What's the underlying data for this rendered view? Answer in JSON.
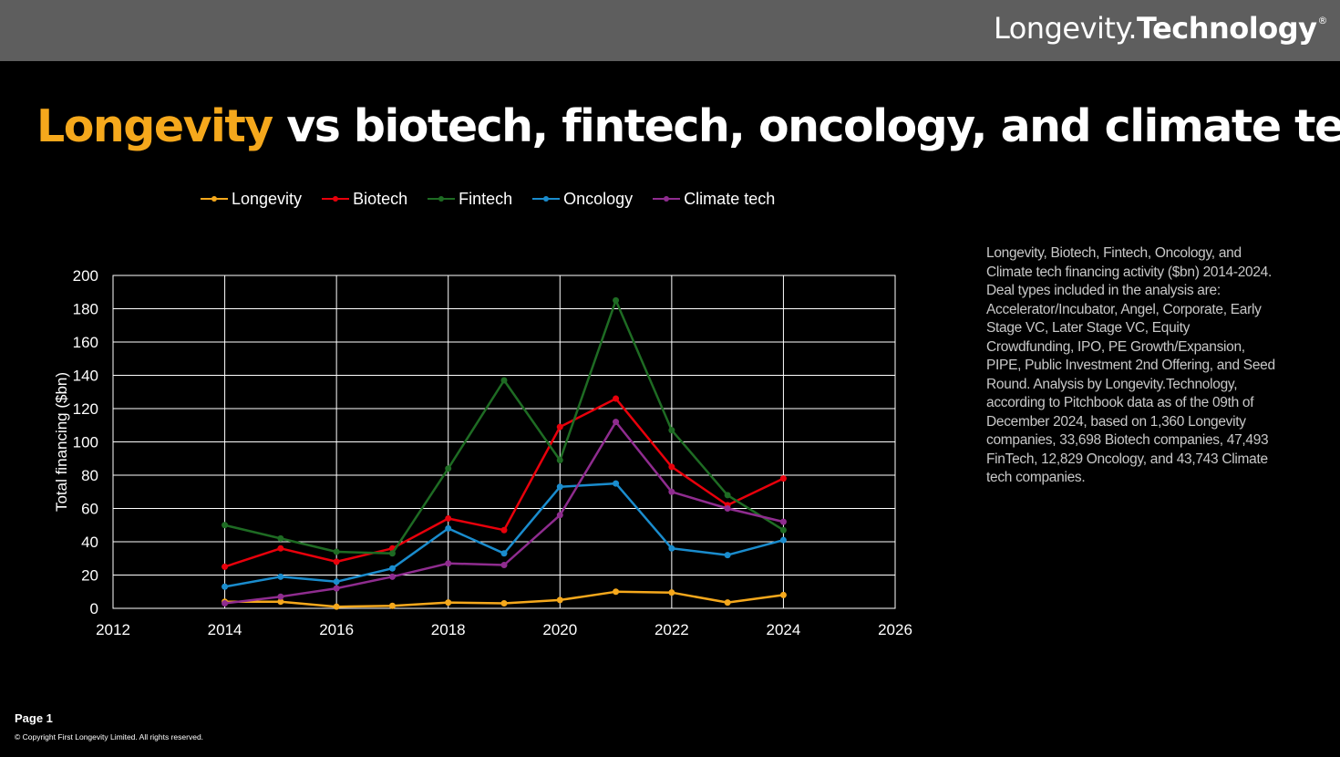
{
  "header": {
    "brand_light": "Longevity.",
    "brand_bold": "Technology",
    "brand_mark": "®"
  },
  "slide": {
    "title_highlight": "Longevity",
    "title_rest": " vs biotech, fintech, oncology, and climate tech",
    "description": "Longevity, Biotech, Fintech, Oncology, and Climate tech financing activity ($bn) 2014-2024. Deal types included in the analysis are: Accelerator/Incubator, Angel, Corporate, Early Stage VC, Later Stage VC, Equity Crowdfunding, IPO, PE Growth/Expansion, PIPE, Public Investment 2nd Offering, and Seed Round. Analysis by Longevity.Technology, according to Pitchbook data as of the 09th of December 2024, based on 1,360 Longevity companies, 33,698 Biotech companies, 47,493 FinTech, 12,829 Oncology, and 43,743 Climate tech companies."
  },
  "footer": {
    "page": "Page 1",
    "copyright": "© Copyright First Longevity Limited. All rights reserved."
  },
  "colors": {
    "accent": "#f5a81c",
    "background": "#000000",
    "topbar": "#5e5e5e"
  },
  "chart_data": {
    "type": "line",
    "title": "",
    "xlabel": "",
    "ylabel": "Total financing ($bn)",
    "xlim": [
      2012,
      2026
    ],
    "ylim": [
      0,
      200
    ],
    "xticks": [
      2012,
      2014,
      2016,
      2018,
      2020,
      2022,
      2024,
      2026
    ],
    "yticks": [
      0,
      20,
      40,
      60,
      80,
      100,
      120,
      140,
      160,
      180,
      200
    ],
    "grid": true,
    "legend_position": "top",
    "x": [
      2014,
      2015,
      2016,
      2017,
      2018,
      2019,
      2020,
      2021,
      2022,
      2023,
      2024
    ],
    "series": [
      {
        "name": "Longevity",
        "color": "#f5a81c",
        "values": [
          4,
          4,
          1,
          1.5,
          3.5,
          3,
          5,
          10,
          9.5,
          3.5,
          8
        ]
      },
      {
        "name": "Biotech",
        "color": "#e8000b",
        "values": [
          25,
          36,
          28,
          36,
          54,
          47,
          109,
          126,
          85,
          62,
          78
        ]
      },
      {
        "name": "Fintech",
        "color": "#1e6b23",
        "values": [
          50,
          42,
          34,
          33,
          84,
          137,
          89,
          185,
          107,
          68,
          47
        ]
      },
      {
        "name": "Oncology",
        "color": "#1a8ccd",
        "values": [
          13,
          19,
          16,
          24,
          48,
          33,
          73,
          75,
          36,
          32,
          41
        ]
      },
      {
        "name": "Climate tech",
        "color": "#8f2c8f",
        "values": [
          3,
          7,
          12,
          19,
          27,
          26,
          56,
          112,
          70,
          60,
          52
        ]
      }
    ]
  }
}
